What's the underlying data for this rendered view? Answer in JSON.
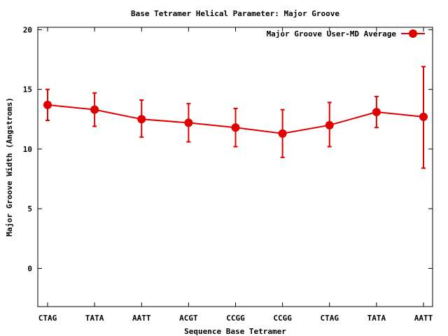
{
  "chart_data": {
    "type": "line",
    "title": "Base Tetramer Helical Parameter: Major Groove",
    "xlabel": "Sequence Base Tetramer",
    "ylabel": "Major Groove Width (Angstroms)",
    "categories": [
      "CTAG",
      "TATA",
      "AATT",
      "ACGT",
      "CCGG",
      "CCGG",
      "CTAG",
      "TATA",
      "AATT"
    ],
    "ylim": [
      -3.2,
      20.2
    ],
    "yticks": [
      0,
      5,
      10,
      15,
      20
    ],
    "ytick_labels": [
      "0",
      "5",
      "10",
      "15",
      "20"
    ],
    "grid": false,
    "legend_position": "top-right",
    "series": [
      {
        "name": "Major Groove User-MD Average",
        "color": "#e00000",
        "values": [
          13.7,
          13.3,
          12.5,
          12.2,
          11.8,
          11.3,
          12.0,
          13.1,
          12.7
        ],
        "err_low": [
          12.4,
          11.9,
          11.0,
          10.6,
          10.2,
          9.3,
          10.2,
          11.8,
          8.4
        ],
        "err_high": [
          15.0,
          14.7,
          14.1,
          13.8,
          13.4,
          13.3,
          13.9,
          14.4,
          16.9
        ]
      }
    ]
  }
}
